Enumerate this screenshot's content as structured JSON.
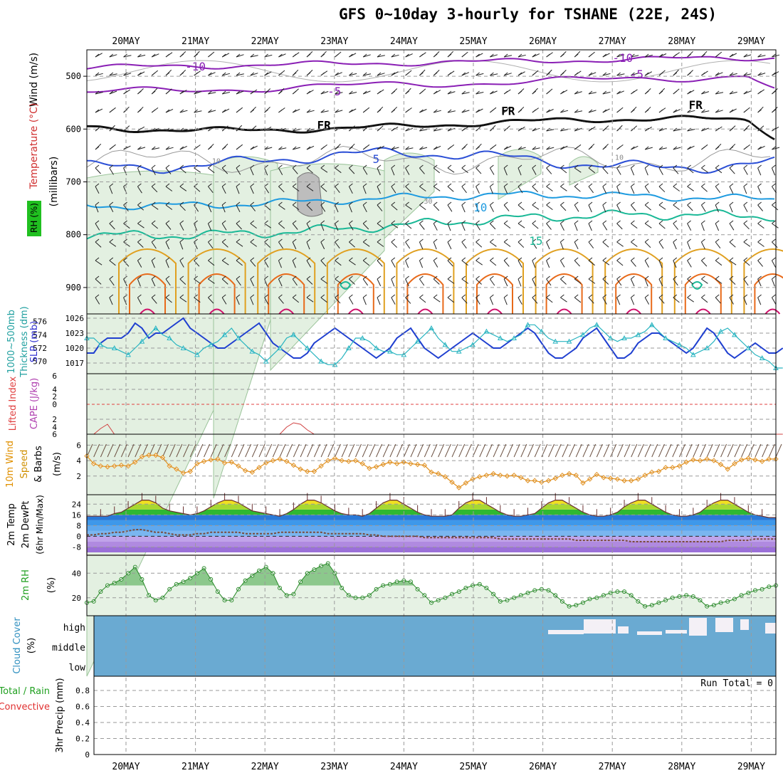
{
  "title": "GFS 0~10day 3-hourly for TSHANE (22E, 24S)",
  "colors": {
    "wind_label": "#000000",
    "temperature_label": "#d03030",
    "rh_label": "#20a020",
    "slp_label": "#3030d0",
    "thickness_label": "#20a0a0",
    "cape_label": "#b040b0",
    "lifted_label": "#e04040",
    "wind10_label": "#e09000",
    "speed_label": "#d09000",
    "rh2m_label": "#20a020",
    "cloud_label": "#3090c0",
    "precip_green": "#20a020",
    "precip_red": "#e03030"
  },
  "chart_data": [
    {
      "id": "upper-air",
      "type": "contour",
      "ylabel_parts": [
        "Wind (m/s)",
        "Temperature (°C)",
        "RH (%)",
        "(millibars)"
      ],
      "y_ticks": [
        500,
        600,
        700,
        800,
        900
      ],
      "ylim": [
        450,
        950
      ],
      "x_categories": [
        "20MAY",
        "21MAY",
        "22MAY",
        "23MAY",
        "24MAY",
        "25MAY",
        "26MAY",
        "27MAY",
        "28MAY",
        "29MAY"
      ],
      "contour_labels": [
        {
          "text": "-10",
          "day": 1.0,
          "p": 489
        },
        {
          "text": "-10",
          "day": 7.15,
          "p": 473
        },
        {
          "text": "-5",
          "day": 3.0,
          "p": 536
        },
        {
          "text": "-5",
          "day": 7.35,
          "p": 504
        },
        {
          "text": "FR",
          "day": 2.85,
          "p": 600
        },
        {
          "text": "FR",
          "day": 5.5,
          "p": 573
        },
        {
          "text": "FR",
          "day": 8.2,
          "p": 562
        },
        {
          "text": "5",
          "day": 3.6,
          "p": 664
        },
        {
          "text": "10",
          "day": 5.1,
          "p": 756
        },
        {
          "text": "15",
          "day": 5.9,
          "p": 819
        },
        {
          "text": "10",
          "day": 1.3,
          "p": 665
        },
        {
          "text": "10",
          "day": 7.1,
          "p": 658
        },
        {
          "text": "30",
          "day": 4.35,
          "p": 741
        }
      ]
    },
    {
      "id": "slp-thickness",
      "type": "line",
      "ylabel_parts": [
        "1000~500mb",
        "Thickness (dm)",
        "SLP (mb)"
      ],
      "y_ticks_left": [
        570,
        572,
        574,
        576
      ],
      "y_ticks_right": [
        1017,
        1020,
        1023,
        1026
      ],
      "series": [
        {
          "values": [
            1019,
            1019,
            1021,
            1022,
            1022,
            1022,
            1023,
            1025,
            1024,
            1022,
            1023,
            1023,
            1024,
            1025,
            1026,
            1024,
            1023,
            1022,
            1021,
            1020,
            1020,
            1021,
            1022,
            1023,
            1024,
            1025,
            1023,
            1021,
            1020,
            1019,
            1018,
            1018,
            1019,
            1021,
            1022,
            1023,
            1024,
            1023,
            1022,
            1021,
            1020,
            1019,
            1018,
            1019,
            1020,
            1022,
            1023,
            1024,
            1022,
            1020,
            1019,
            1018,
            1019,
            1020,
            1021,
            1022,
            1023,
            1022,
            1021,
            1020,
            1020,
            1021,
            1022,
            1023,
            1024,
            1023,
            1021,
            1019,
            1018,
            1018,
            1019,
            1020,
            1022,
            1023,
            1024,
            1022,
            1020,
            1018,
            1018,
            1019,
            1021,
            1022,
            1023,
            1023,
            1022,
            1021,
            1020,
            1019,
            1020,
            1022,
            1024,
            1023,
            1021,
            1019,
            1018,
            1019,
            1020,
            1021,
            1020,
            1019,
            1019,
            1020
          ]
        },
        {
          "values": [
            573.5,
            573.5,
            572.5,
            572,
            572,
            571.5,
            571,
            572,
            573,
            574,
            575,
            574,
            573.5,
            572.5,
            572,
            571.5,
            571,
            572,
            572.5,
            573,
            574,
            575,
            573.5,
            572.5,
            571.5,
            571,
            570,
            571,
            572,
            573.5,
            574,
            573,
            572,
            571,
            570,
            569.5,
            569.5,
            570.5,
            572,
            573.5,
            573.5,
            573,
            572,
            571.5,
            571.5,
            571,
            571,
            572,
            573,
            574,
            575,
            573.5,
            572.5,
            571.5,
            571.5,
            572,
            572.5,
            573.5,
            574.5,
            574,
            573.5,
            573,
            573.5,
            574,
            575.5,
            575.5,
            574.5,
            573.5,
            573,
            573,
            573,
            573.5,
            574,
            575,
            575.5,
            574.5,
            573.5,
            573,
            573.5,
            573.5,
            574,
            574.5,
            575.5,
            574.5,
            573.5,
            573,
            572.5,
            572,
            571,
            571.5,
            572,
            573,
            574.5,
            575,
            574,
            573,
            572,
            571,
            570.5,
            570,
            569,
            569
          ]
        }
      ]
    },
    {
      "id": "cape-li",
      "type": "line",
      "ylabel_parts": [
        "Lifted Index",
        "CAPE (J/kg)"
      ],
      "y_ticks": [
        6,
        4,
        2,
        0,
        2,
        4,
        6
      ],
      "series": [
        {
          "values": [
            0,
            0,
            0.4,
            0.7,
            0,
            0,
            0,
            0,
            0,
            0,
            0,
            0,
            0,
            0,
            0,
            0,
            0,
            0,
            0,
            0,
            0,
            0,
            0,
            0,
            0,
            0,
            0,
            0,
            0,
            0.5,
            0.8,
            0.7,
            0.3,
            0,
            0,
            0,
            0,
            0,
            0,
            0,
            0,
            0,
            0,
            0,
            0,
            0,
            0,
            0,
            0,
            0,
            0,
            0,
            0,
            0,
            0,
            0,
            0,
            0,
            0,
            0,
            0,
            0,
            0,
            0,
            0,
            0,
            0,
            0,
            0,
            0,
            0,
            0,
            0,
            0,
            0,
            0,
            0,
            0,
            0,
            0,
            0,
            0,
            0,
            0,
            0,
            0,
            0,
            0,
            0,
            0,
            0,
            0,
            0,
            0,
            0,
            0,
            0,
            0,
            0,
            0,
            0,
            0
          ]
        }
      ]
    },
    {
      "id": "wind10m",
      "type": "line",
      "ylabel_parts": [
        "10m Wind",
        "Speed",
        "& Barbs",
        "(m/s)"
      ],
      "y_ticks": [
        2,
        4,
        6
      ],
      "values": [
        4.6,
        3.6,
        3.3,
        3.2,
        3.3,
        3.4,
        3.3,
        3.8,
        4.5,
        4.7,
        4.7,
        4.4,
        3.3,
        2.9,
        2.4,
        2.6,
        3.6,
        3.9,
        4.1,
        4.2,
        3.7,
        3.8,
        3.3,
        2.7,
        2.5,
        3.1,
        3.7,
        4.0,
        4.2,
        3.9,
        3.4,
        2.9,
        2.6,
        2.6,
        3.3,
        4.0,
        4.3,
        4.0,
        3.9,
        4.0,
        3.6,
        3.0,
        3.2,
        3.5,
        3.8,
        3.6,
        3.8,
        3.6,
        3.5,
        3.4,
        2.5,
        2.3,
        1.9,
        1.2,
        0.5,
        1.1,
        1.6,
        1.9,
        2.1,
        2.3,
        2.1,
        2.0,
        2.1,
        1.8,
        1.4,
        1.4,
        1.2,
        1.4,
        1.7,
        2.1,
        2.3,
        2.1,
        1.1,
        1.6,
        2.2,
        1.8,
        1.7,
        1.6,
        1.4,
        1.4,
        1.6,
        2.1,
        2.5,
        2.6,
        3.1,
        3.1,
        3.3,
        3.8,
        4.1,
        4.0,
        4.2,
        4.0,
        3.5,
        2.9,
        3.6,
        4.1,
        4.3,
        4.1,
        3.9,
        4.2,
        4.2
      ]
    },
    {
      "id": "temp2m",
      "type": "area",
      "ylabel_parts": [
        "2m Temp",
        "2m DewPt",
        "(6hr Min/Max)"
      ],
      "y_ticks": [
        24,
        16,
        8,
        0,
        -8
      ],
      "temp_values": [
        15,
        15,
        15,
        15,
        17,
        18,
        21,
        24,
        27,
        27,
        25,
        21,
        19,
        18,
        17,
        16,
        17,
        19,
        22,
        25,
        27,
        27,
        25,
        22,
        19,
        18,
        17,
        16,
        15,
        17,
        20,
        24,
        27,
        27,
        25,
        22,
        19,
        17,
        16,
        16,
        15,
        17,
        21,
        25,
        27,
        27,
        24,
        21,
        18,
        16,
        15,
        15,
        15,
        16,
        21,
        25,
        27,
        27,
        24,
        21,
        18,
        16,
        15,
        15,
        16,
        17,
        21,
        25,
        27,
        27,
        24,
        21,
        18,
        16,
        15,
        15,
        16,
        18,
        22,
        25,
        27,
        27,
        24,
        21,
        18,
        16,
        15,
        15,
        16,
        18,
        22,
        25,
        27,
        27,
        24,
        21,
        18,
        16,
        15,
        14,
        14
      ],
      "dew_values": [
        1,
        1,
        2,
        2,
        3,
        3,
        4,
        5,
        5,
        4,
        3,
        3,
        2,
        1,
        1,
        1,
        2,
        2,
        3,
        3,
        3,
        3,
        3,
        2,
        2,
        2,
        2,
        2,
        3,
        3,
        3,
        3,
        3,
        3,
        3,
        2,
        2,
        2,
        2,
        2,
        2,
        1,
        1,
        0,
        0,
        0,
        0,
        0,
        0,
        -1,
        -1,
        -1,
        -1,
        -1,
        -1,
        -1,
        -1,
        -1,
        -1,
        -1,
        -2,
        -2,
        -2,
        -2,
        -2,
        -2,
        -2,
        -2,
        -2,
        -2,
        -2,
        -3,
        -3,
        -3,
        -3,
        -3,
        -3,
        -3,
        -3,
        -4,
        -4,
        -4,
        -4,
        -4,
        -4,
        -4,
        -4,
        -4,
        -4,
        -4,
        -4,
        -4,
        -4,
        -3,
        -3,
        -3,
        -3,
        -2,
        -2,
        -2,
        -2
      ]
    },
    {
      "id": "rh2m",
      "type": "area",
      "ylabel_parts": [
        "2m RH",
        "(%)"
      ],
      "y_ticks": [
        20,
        40
      ],
      "values": [
        16,
        17,
        25,
        30,
        32,
        35,
        40,
        45,
        35,
        22,
        18,
        20,
        27,
        31,
        33,
        36,
        40,
        44,
        35,
        25,
        18,
        18,
        27,
        34,
        38,
        42,
        45,
        40,
        28,
        22,
        23,
        33,
        40,
        43,
        46,
        48,
        40,
        28,
        22,
        20,
        20,
        22,
        27,
        30,
        31,
        33,
        34,
        33,
        27,
        22,
        16,
        18,
        20,
        23,
        25,
        28,
        30,
        31,
        28,
        23,
        17,
        18,
        20,
        22,
        24,
        26,
        27,
        26,
        22,
        17,
        13,
        14,
        16,
        19,
        20,
        22,
        24,
        25,
        25,
        22,
        17,
        13,
        14,
        16,
        18,
        20,
        21,
        22,
        21,
        18,
        13,
        14,
        16,
        17,
        19,
        22,
        24,
        26,
        27,
        29,
        30
      ]
    },
    {
      "id": "cloud",
      "type": "heatmap",
      "ylabel_parts": [
        "Cloud Cover",
        "(%)"
      ],
      "y_categories": [
        "high",
        "middle",
        "low"
      ]
    },
    {
      "id": "precip",
      "type": "bar",
      "ylabel_parts": [
        "3hr Precip (mm)",
        "Total / Rain",
        "Convective"
      ],
      "y_ticks": [
        0,
        0.2,
        0.4,
        0.6,
        0.8
      ],
      "annotation": "Run Total = 0",
      "values": []
    }
  ]
}
